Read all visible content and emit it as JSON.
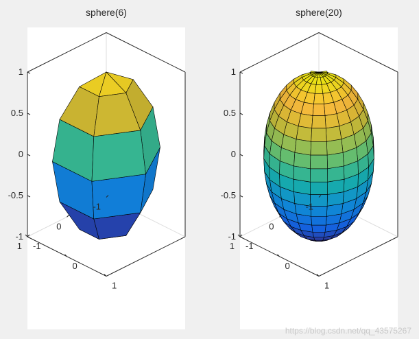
{
  "figure": {
    "background": "#f0f0f0",
    "watermark": "https://blog.csdn.net/qq_43575267"
  },
  "chart_data": [
    {
      "type": "surface",
      "title": "sphere(6)",
      "n": 6,
      "xlabel": "",
      "ylabel": "",
      "zlabel": "",
      "xlim": [
        -1,
        1
      ],
      "ylim": [
        -1,
        1
      ],
      "zlim": [
        -1,
        1
      ],
      "x_ticks": [
        "-1",
        "0",
        "1"
      ],
      "y_ticks": [
        "1",
        "0",
        "-1"
      ],
      "z_ticks": [
        "-1",
        "-0.5",
        "0",
        "0.5",
        "1"
      ],
      "grid": false,
      "colormap": "parula"
    },
    {
      "type": "surface",
      "title": "sphere(20)",
      "n": 20,
      "xlabel": "",
      "ylabel": "",
      "zlabel": "",
      "xlim": [
        -1,
        1
      ],
      "ylim": [
        -1,
        1
      ],
      "zlim": [
        -1,
        1
      ],
      "x_ticks": [
        "-1",
        "0",
        "1"
      ],
      "y_ticks": [
        "1",
        "0",
        "-1"
      ],
      "z_ticks": [
        "-1",
        "-0.5",
        "0",
        "0.5",
        "1"
      ],
      "grid": false,
      "colormap": "parula"
    }
  ]
}
